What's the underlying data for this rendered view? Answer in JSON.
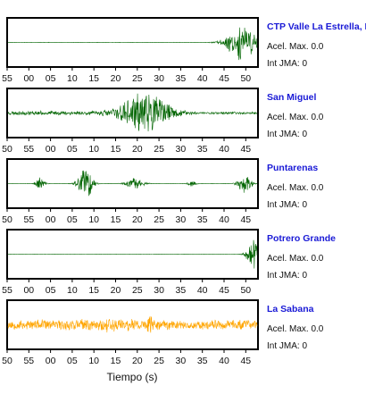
{
  "chart_data": {
    "type": "line",
    "title": "",
    "xlabel": "Tiempo (s)",
    "ylabel": "",
    "grid": false,
    "legend": "none",
    "panels": [
      {
        "station": "CTP Valle La Estrella, L",
        "acel_label": "Acel. Max. 0.0",
        "int_label": "Int JMA: 0",
        "color": "#006400",
        "tick_labels": [
          "55",
          "00",
          "05",
          "10",
          "15",
          "20",
          "25",
          "30",
          "35",
          "40",
          "45",
          "50"
        ],
        "tick_labels_visible": true,
        "bursts": [
          {
            "center": 47.0,
            "width": 2.2,
            "amp": 0.85
          }
        ],
        "noise": 0.01,
        "seed": 11
      },
      {
        "station": "San Miguel",
        "acel_label": "Acel. Max. 0.0",
        "int_label": "Int JMA: 0",
        "color": "#006400",
        "tick_labels": [
          "50",
          "55",
          "00",
          "05",
          "10",
          "15",
          "20",
          "25",
          "30",
          "35",
          "40",
          "45"
        ],
        "tick_labels_visible": true,
        "bursts": [
          {
            "center": 27.5,
            "width": 3.5,
            "amp": 0.95
          },
          {
            "center": 8.0,
            "width": 25,
            "amp": 0.06
          }
        ],
        "noise": 0.04,
        "seed": 23
      },
      {
        "station": "Puntarenas",
        "acel_label": "Acel. Max. 0.0",
        "int_label": "Int JMA: 0",
        "color": "#006400",
        "tick_labels": [
          "50",
          "55",
          "00",
          "05",
          "10",
          "15",
          "20",
          "25",
          "30",
          "35",
          "40",
          "45"
        ],
        "tick_labels_visible": true,
        "bursts": [
          {
            "center": 6.5,
            "width": 0.6,
            "amp": 0.35
          },
          {
            "center": 15.5,
            "width": 1.0,
            "amp": 0.95
          },
          {
            "center": 25.5,
            "width": 1.2,
            "amp": 0.3
          },
          {
            "center": 37.0,
            "width": 0.6,
            "amp": 0.15
          },
          {
            "center": 47.5,
            "width": 1.0,
            "amp": 0.45
          }
        ],
        "noise": 0.01,
        "seed": 37
      },
      {
        "station": "Potrero Grande",
        "acel_label": "Acel. Max. 0.0",
        "int_label": "Int JMA: 0",
        "color": "#006400",
        "tick_labels": [
          "55",
          "00",
          "05",
          "10",
          "15",
          "20",
          "25",
          "30",
          "35",
          "40",
          "45",
          "50"
        ],
        "tick_labels_visible": true,
        "bursts": [
          {
            "center": 49.5,
            "width": 1.0,
            "amp": 0.95
          }
        ],
        "noise": 0.006,
        "seed": 41
      },
      {
        "station": "La Sabana",
        "acel_label": "Acel. Max. 0.0",
        "int_label": "Int JMA: 0",
        "color": "#FFA500",
        "tick_labels": [
          "50",
          "55",
          "00",
          "05",
          "10",
          "15",
          "20",
          "25",
          "30",
          "35",
          "40",
          "45"
        ],
        "tick_labels_visible": true,
        "bursts": [
          {
            "center": 20.0,
            "width": 4.0,
            "amp": 0.12
          },
          {
            "center": 28.5,
            "width": 0.3,
            "amp": 0.55
          }
        ],
        "noise": 0.25,
        "seed": 53
      }
    ]
  }
}
